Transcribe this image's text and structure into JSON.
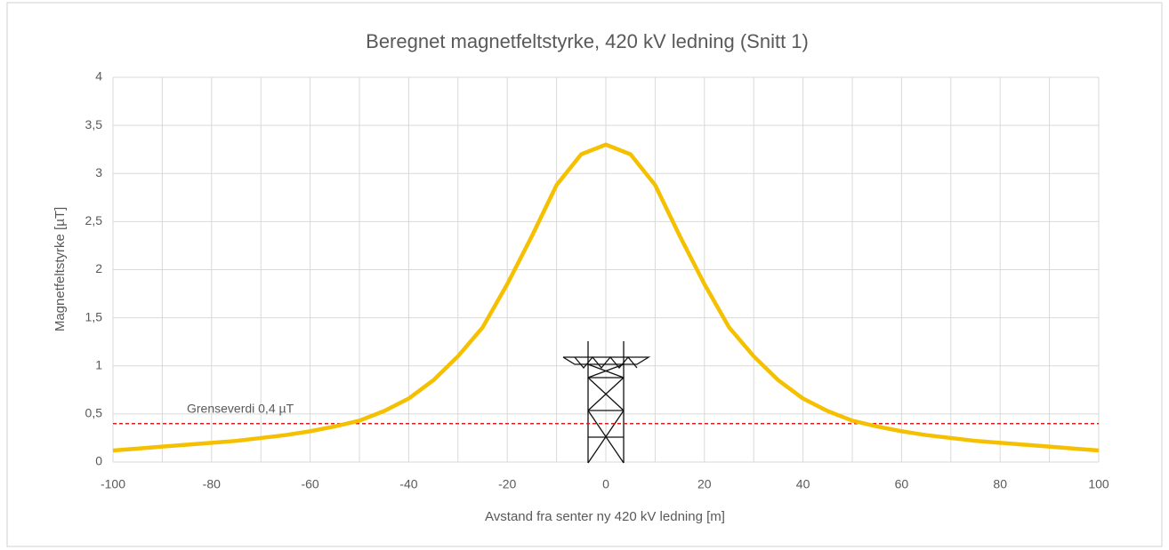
{
  "chart_data": {
    "type": "line",
    "title": "Beregnet magnetfeltstyrke, 420 kV ledning (Snitt 1)",
    "xlabel": "Avstand fra senter ny 420 kV ledning [m]",
    "ylabel": "Magnetfeltstyrke [µT]",
    "x": [
      -100,
      -95,
      -90,
      -85,
      -80,
      -75,
      -70,
      -65,
      -60,
      -55,
      -50,
      -45,
      -40,
      -35,
      -30,
      -25,
      -20,
      -15,
      -10,
      -5,
      0,
      5,
      10,
      15,
      20,
      25,
      30,
      35,
      40,
      45,
      50,
      55,
      60,
      65,
      70,
      75,
      80,
      85,
      90,
      95,
      100
    ],
    "series": [
      {
        "color": "#f5c000",
        "values": [
          0.12,
          0.14,
          0.16,
          0.18,
          0.2,
          0.22,
          0.25,
          0.28,
          0.32,
          0.37,
          0.43,
          0.53,
          0.66,
          0.85,
          1.1,
          1.4,
          1.85,
          2.35,
          2.88,
          3.2,
          3.3,
          3.2,
          2.88,
          2.35,
          1.85,
          1.4,
          1.1,
          0.85,
          0.66,
          0.53,
          0.43,
          0.37,
          0.32,
          0.28,
          0.25,
          0.22,
          0.2,
          0.18,
          0.16,
          0.14,
          0.12
        ]
      }
    ],
    "threshold": {
      "value": 0.4,
      "label": "Grenseverdi 0,4 µT",
      "color": "#e31a1c"
    },
    "xlim": [
      -100,
      100
    ],
    "xticks": [
      -100,
      -80,
      -60,
      -40,
      -20,
      0,
      20,
      40,
      60,
      80,
      100
    ],
    "ylim": [
      0,
      4
    ],
    "yticks": [
      0,
      {
        "value": 0.5,
        "label": "0,5"
      },
      1,
      {
        "value": 1.5,
        "label": "1,5"
      },
      2,
      {
        "value": 2.5,
        "label": "2,5"
      },
      3,
      {
        "value": 3.5,
        "label": "3,5"
      },
      4
    ],
    "grid": true
  }
}
